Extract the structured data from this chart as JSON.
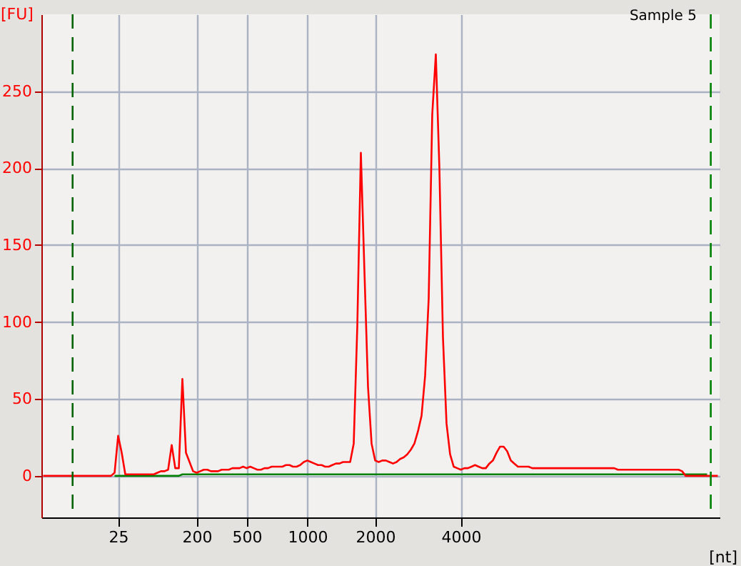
{
  "chart_data": {
    "type": "line",
    "title": "Sample 5",
    "xlabel": "[nt]",
    "ylabel": "[FU]",
    "categories": [
      null,
      null,
      null,
      null,
      null,
      null,
      null,
      null,
      null,
      null,
      null,
      null,
      null,
      null,
      null,
      null,
      null,
      null,
      null,
      null,
      null,
      "25",
      null,
      null,
      null,
      null,
      null,
      null,
      null,
      null,
      null,
      null,
      null,
      null,
      null,
      null,
      null,
      null,
      null,
      null,
      null,
      null,
      null,
      "200",
      null,
      null,
      null,
      null,
      null,
      null,
      null,
      null,
      null,
      null,
      null,
      null,
      null,
      "500",
      null,
      null,
      null,
      null,
      null,
      null,
      null,
      null,
      null,
      null,
      null,
      null,
      null,
      null,
      null,
      null,
      "1000",
      null,
      null,
      null,
      null,
      null,
      null,
      null,
      null,
      null,
      null,
      null,
      null,
      null,
      null,
      null,
      null,
      null,
      null,
      "2000",
      null,
      null,
      null,
      null,
      null,
      null,
      null,
      null,
      null,
      null,
      null,
      null,
      null,
      null,
      null,
      null,
      null,
      null,
      null,
      null,
      null,
      null,
      null,
      "4000",
      null,
      null,
      null,
      null,
      null,
      null,
      null,
      null,
      null,
      null,
      null,
      null,
      null,
      null,
      null,
      null,
      null,
      null,
      null,
      null,
      null,
      null,
      null,
      null,
      null,
      null,
      null,
      null,
      null,
      null,
      null,
      null,
      null,
      null,
      null,
      null,
      null,
      null,
      null,
      null,
      null,
      null,
      null,
      null,
      null,
      null,
      null,
      null,
      null,
      null,
      null,
      null,
      null,
      null,
      null,
      null,
      null,
      null,
      null,
      null,
      null,
      null,
      null,
      null,
      null,
      null,
      null,
      null,
      null,
      null,
      null,
      null
    ],
    "ylim": [
      -27,
      300
    ],
    "yticks": [
      0,
      50,
      100,
      150,
      200,
      250
    ],
    "series": [
      {
        "color": "#ff0000",
        "values": [
          0,
          0,
          0,
          0,
          0,
          0,
          0,
          0,
          0,
          0,
          0,
          0,
          0,
          0,
          0,
          0,
          0,
          0,
          0,
          0,
          2,
          26,
          15,
          1,
          1,
          1,
          1,
          1,
          1,
          1,
          1,
          1,
          2,
          3,
          3,
          4,
          20,
          5,
          5,
          63,
          15,
          9,
          3,
          2,
          3,
          4,
          4,
          3,
          3,
          3,
          4,
          4,
          4,
          5,
          5,
          5,
          6,
          5,
          6,
          5,
          4,
          4,
          5,
          5,
          6,
          6,
          6,
          6,
          7,
          7,
          6,
          6,
          7,
          9,
          10,
          9,
          8,
          7,
          7,
          6,
          6,
          7,
          8,
          8,
          9,
          9,
          9,
          21,
          97,
          210,
          133,
          58,
          21,
          10,
          9,
          10,
          10,
          9,
          8,
          9,
          11,
          12,
          14,
          17,
          21,
          29,
          39,
          65,
          115,
          235,
          274,
          200,
          90,
          34,
          14,
          6,
          5,
          4,
          5,
          5,
          6,
          7,
          6,
          5,
          5,
          8,
          10,
          15,
          19,
          19,
          16,
          10,
          8,
          6,
          6,
          6,
          6,
          5,
          5,
          5,
          5,
          5,
          5,
          5,
          5,
          5,
          5,
          5,
          5,
          5,
          5,
          5,
          5,
          5,
          5,
          5,
          5,
          5,
          5,
          5,
          5,
          4,
          4,
          4,
          4,
          4,
          4,
          4,
          4,
          4,
          4,
          4,
          4,
          4,
          4,
          4,
          4,
          4,
          4,
          3,
          0,
          0,
          0,
          0,
          0,
          0,
          0,
          0,
          0,
          0
        ]
      },
      {
        "color": "#008000",
        "values": [
          null,
          null,
          null,
          null,
          null,
          null,
          null,
          null,
          null,
          null,
          null,
          null,
          null,
          null,
          null,
          null,
          null,
          null,
          null,
          null,
          0,
          0,
          0,
          0,
          0,
          0,
          0,
          0,
          0,
          0,
          0,
          0,
          0,
          0,
          0,
          0,
          0,
          0,
          0,
          1,
          1,
          1,
          1,
          1,
          1,
          1,
          1,
          1,
          1,
          1,
          1,
          1,
          1,
          1,
          1,
          1,
          1,
          1,
          1,
          1,
          1,
          1,
          1,
          1,
          1,
          1,
          1,
          1,
          1,
          1,
          1,
          1,
          1,
          1,
          1,
          1,
          1,
          1,
          1,
          1,
          1,
          1,
          1,
          1,
          1,
          1,
          1,
          1,
          1,
          1,
          1,
          1,
          1,
          1,
          1,
          1,
          1,
          1,
          1,
          1,
          1,
          1,
          1,
          1,
          1,
          1,
          1,
          1,
          1,
          1,
          1,
          1,
          1,
          1,
          1,
          1,
          1,
          1,
          1,
          1,
          1,
          1,
          1,
          1,
          1,
          1,
          1,
          1,
          1,
          1,
          1,
          1,
          1,
          1,
          1,
          1,
          1,
          1,
          1,
          1,
          1,
          1,
          1,
          1,
          1,
          1,
          1,
          1,
          1,
          1,
          1,
          1,
          1,
          1,
          1,
          1,
          1,
          1,
          1,
          1,
          1,
          1,
          1,
          1,
          1,
          1,
          1,
          1,
          1,
          1,
          1,
          1,
          1,
          1,
          1,
          1,
          1,
          1,
          1,
          1,
          1,
          1,
          1,
          1,
          1,
          1,
          1,
          null,
          null,
          null
        ]
      }
    ],
    "grid": true
  }
}
